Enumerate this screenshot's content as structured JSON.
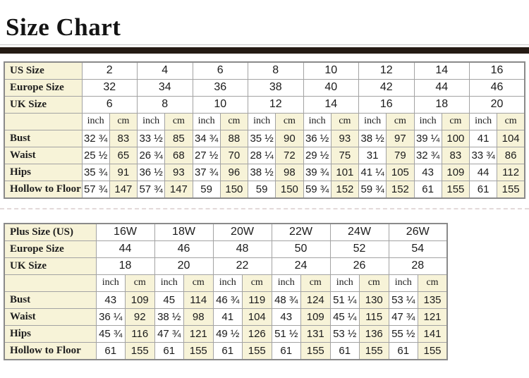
{
  "page": {
    "title": "Size Chart"
  },
  "colors": {
    "accent_bar": "#251b14",
    "label_background": "#f7f3d8",
    "cm_column_background": "#f7f3d8",
    "grid_border": "#a3a3a3"
  },
  "tables": [
    {
      "id": "standard-sizes",
      "size_rows": [
        {
          "label": "US Size",
          "values": [
            "2",
            "4",
            "6",
            "8",
            "10",
            "12",
            "14",
            "16"
          ]
        },
        {
          "label": "Europe Size",
          "values": [
            "32",
            "34",
            "36",
            "38",
            "40",
            "42",
            "44",
            "46"
          ]
        },
        {
          "label": "UK Size",
          "values": [
            "6",
            "8",
            "10",
            "12",
            "14",
            "16",
            "18",
            "20"
          ]
        }
      ],
      "unit_headers": [
        "inch",
        "cm"
      ],
      "measure_rows": [
        {
          "label": "Bust",
          "values": [
            "32 ¾",
            "83",
            "33 ½",
            "85",
            "34 ¾",
            "88",
            "35 ½",
            "90",
            "36 ½",
            "93",
            "38 ½",
            "97",
            "39 ¼",
            "100",
            "41",
            "104"
          ]
        },
        {
          "label": "Waist",
          "values": [
            "25 ½",
            "65",
            "26 ¾",
            "68",
            "27 ½",
            "70",
            "28 ¼",
            "72",
            "29 ½",
            "75",
            "31",
            "79",
            "32 ¾",
            "83",
            "33 ¾",
            "86"
          ]
        },
        {
          "label": "Hips",
          "values": [
            "35 ¾",
            "91",
            "36 ½",
            "93",
            "37 ¾",
            "96",
            "38 ½",
            "98",
            "39 ¾",
            "101",
            "41 ¼",
            "105",
            "43",
            "109",
            "44",
            "112"
          ]
        },
        {
          "label": "Hollow to Floor",
          "values": [
            "57 ¾",
            "147",
            "57 ¾",
            "147",
            "59",
            "150",
            "59",
            "150",
            "59 ¾",
            "152",
            "59 ¾",
            "152",
            "61",
            "155",
            "61",
            "155"
          ]
        }
      ]
    },
    {
      "id": "plus-sizes",
      "size_rows": [
        {
          "label": "Plus Size (US)",
          "values": [
            "16W",
            "18W",
            "20W",
            "22W",
            "24W",
            "26W"
          ]
        },
        {
          "label": "Europe Size",
          "values": [
            "44",
            "46",
            "48",
            "50",
            "52",
            "54"
          ]
        },
        {
          "label": "UK Size",
          "values": [
            "18",
            "20",
            "22",
            "24",
            "26",
            "28"
          ]
        }
      ],
      "unit_headers": [
        "inch",
        "cm"
      ],
      "measure_rows": [
        {
          "label": "Bust",
          "values": [
            "43",
            "109",
            "45",
            "114",
            "46 ¾",
            "119",
            "48 ¾",
            "124",
            "51 ¼",
            "130",
            "53 ¼",
            "135"
          ]
        },
        {
          "label": "Waist",
          "values": [
            "36 ¼",
            "92",
            "38 ½",
            "98",
            "41",
            "104",
            "43",
            "109",
            "45 ¼",
            "115",
            "47 ¾",
            "121"
          ]
        },
        {
          "label": "Hips",
          "values": [
            "45 ¾",
            "116",
            "47 ¾",
            "121",
            "49 ½",
            "126",
            "51 ½",
            "131",
            "53 ½",
            "136",
            "55 ½",
            "141"
          ]
        },
        {
          "label": "Hollow to Floor",
          "values": [
            "61",
            "155",
            "61",
            "155",
            "61",
            "155",
            "61",
            "155",
            "61",
            "155",
            "61",
            "155"
          ]
        }
      ]
    }
  ]
}
